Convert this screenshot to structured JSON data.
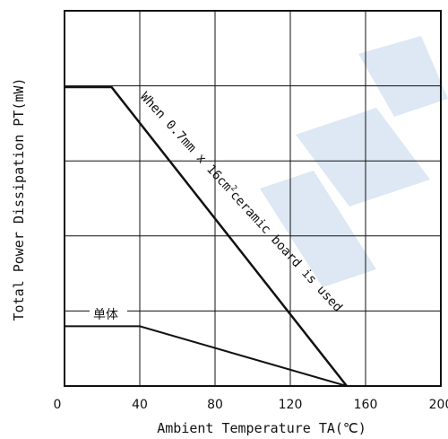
{
  "chart_data": {
    "type": "line",
    "xlabel": "Ambient Temperature TA(℃)",
    "ylabel": "Total Power Dissipation PT(mW)",
    "xlim": [
      0,
      200
    ],
    "xticks": [
      "0",
      "40",
      "80",
      "120",
      "160",
      "200"
    ],
    "y_ticks_shown": false,
    "y_gridlines": 4,
    "grid": true,
    "series": [
      {
        "name": "When 0.7mm x 16cm² ceramic board is used",
        "x": [
          0,
          25,
          150
        ],
        "y": [
          1,
          1,
          0
        ]
      },
      {
        "name": "单体",
        "x": [
          0,
          40,
          150
        ],
        "y": [
          0.2,
          0.2,
          0
        ]
      }
    ],
    "annotations": {
      "board_label_main": "When 0.7mm x 16cm",
      "board_label_sup": "2",
      "board_label_tail": "ceramic board is used",
      "single_label": "单体"
    }
  }
}
